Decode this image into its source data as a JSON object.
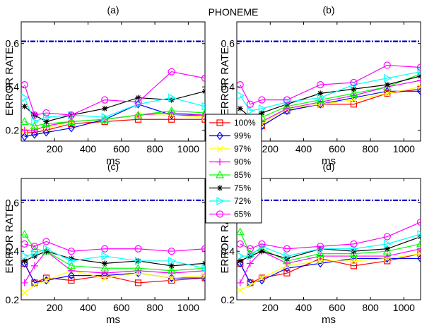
{
  "figure_title": "PHONEME",
  "chart_data": [
    {
      "type": "line",
      "title": "(a)",
      "xlabel": "ms",
      "ylabel": "ERROR RATE",
      "xlim": [
        0,
        1100
      ],
      "ylim": [
        0.15,
        0.7
      ],
      "xticks": [
        200,
        400,
        600,
        800,
        1000
      ],
      "yticks": [
        0.2,
        0.4,
        0.6
      ],
      "x": [
        20,
        80,
        150,
        300,
        500,
        700,
        900,
        1100
      ],
      "reference_line": 0.61,
      "series": [
        {
          "name": "100%",
          "values": [
            0.19,
            0.19,
            0.2,
            0.23,
            0.24,
            0.25,
            0.25,
            0.25
          ]
        },
        {
          "name": "99%",
          "values": [
            0.17,
            0.18,
            0.19,
            0.21,
            0.25,
            0.32,
            0.27,
            0.27
          ]
        },
        {
          "name": "97%",
          "values": [
            0.2,
            0.21,
            0.21,
            0.24,
            0.25,
            0.27,
            0.27,
            0.26
          ]
        },
        {
          "name": "90%",
          "values": [
            0.2,
            0.2,
            0.22,
            0.24,
            0.25,
            0.27,
            0.28,
            0.27
          ]
        },
        {
          "name": "85%",
          "values": [
            0.24,
            0.22,
            0.23,
            0.24,
            0.25,
            0.27,
            0.29,
            0.28
          ]
        },
        {
          "name": "75%",
          "values": [
            0.31,
            0.27,
            0.24,
            0.27,
            0.3,
            0.35,
            0.34,
            0.38
          ]
        },
        {
          "name": "72%",
          "values": [
            0.35,
            0.24,
            0.26,
            0.27,
            0.26,
            0.32,
            0.35,
            0.31
          ]
        },
        {
          "name": "65%",
          "values": [
            0.41,
            0.27,
            0.28,
            0.27,
            0.34,
            0.33,
            0.47,
            0.44
          ]
        }
      ]
    },
    {
      "type": "line",
      "title": "(b)",
      "xlabel": "ms",
      "ylabel": "ERROR RATE",
      "xlim": [
        0,
        1100
      ],
      "ylim": [
        0.15,
        0.7
      ],
      "xticks": [
        200,
        400,
        600,
        800,
        1000
      ],
      "yticks": [
        0.2,
        0.4,
        0.6
      ],
      "x": [
        20,
        80,
        150,
        300,
        500,
        700,
        900,
        1100
      ],
      "reference_line": 0.61,
      "series": [
        {
          "name": "100%",
          "values": [
            0.19,
            0.2,
            0.22,
            0.29,
            0.32,
            0.32,
            0.37,
            0.39
          ]
        },
        {
          "name": "99%",
          "values": [
            0.19,
            0.2,
            0.22,
            0.29,
            0.32,
            0.35,
            0.38,
            0.38
          ]
        },
        {
          "name": "97%",
          "values": [
            0.2,
            0.21,
            0.23,
            0.3,
            0.32,
            0.34,
            0.37,
            0.4
          ]
        },
        {
          "name": "90%",
          "values": [
            0.2,
            0.22,
            0.24,
            0.3,
            0.33,
            0.36,
            0.4,
            0.43
          ]
        },
        {
          "name": "85%",
          "values": [
            0.25,
            0.24,
            0.26,
            0.31,
            0.34,
            0.37,
            0.4,
            0.46
          ]
        },
        {
          "name": "75%",
          "values": [
            0.3,
            0.26,
            0.28,
            0.32,
            0.37,
            0.39,
            0.41,
            0.45
          ]
        },
        {
          "name": "72%",
          "values": [
            0.36,
            0.29,
            0.3,
            0.33,
            0.35,
            0.41,
            0.44,
            0.47
          ]
        },
        {
          "name": "65%",
          "values": [
            0.41,
            0.32,
            0.34,
            0.34,
            0.41,
            0.42,
            0.5,
            0.49
          ]
        }
      ]
    },
    {
      "type": "line",
      "title": "(c)",
      "xlabel": "ms",
      "ylabel": "ERROR RATE",
      "xlim": [
        0,
        1100
      ],
      "ylim": [
        0.2,
        0.7
      ],
      "xticks": [
        200,
        400,
        600,
        800,
        1000
      ],
      "yticks": [
        0.2,
        0.4,
        0.6
      ],
      "x": [
        20,
        80,
        150,
        300,
        500,
        700,
        900,
        1100
      ],
      "reference_line": 0.61,
      "series": [
        {
          "name": "100%",
          "values": [
            0.35,
            0.27,
            0.29,
            0.28,
            0.3,
            0.27,
            0.28,
            0.29
          ]
        },
        {
          "name": "99%",
          "values": [
            0.35,
            0.27,
            0.28,
            0.3,
            0.3,
            0.31,
            0.29,
            0.29
          ]
        },
        {
          "name": "97%",
          "values": [
            0.23,
            0.26,
            0.28,
            0.32,
            0.29,
            0.31,
            0.29,
            0.3
          ]
        },
        {
          "name": "90%",
          "values": [
            0.27,
            0.34,
            0.4,
            0.32,
            0.31,
            0.32,
            0.31,
            0.32
          ]
        },
        {
          "name": "85%",
          "values": [
            0.47,
            0.41,
            0.4,
            0.34,
            0.33,
            0.33,
            0.32,
            0.33
          ]
        },
        {
          "name": "75%",
          "values": [
            0.36,
            0.38,
            0.4,
            0.37,
            0.35,
            0.36,
            0.34,
            0.35
          ]
        },
        {
          "name": "72%",
          "values": [
            0.38,
            0.39,
            0.41,
            0.36,
            0.38,
            0.36,
            0.36,
            0.33
          ]
        },
        {
          "name": "65%",
          "values": [
            0.43,
            0.42,
            0.44,
            0.4,
            0.41,
            0.41,
            0.4,
            0.41
          ]
        }
      ]
    },
    {
      "type": "line",
      "title": "(d)",
      "xlabel": "ms",
      "ylabel": "ERROR RATE",
      "xlim": [
        0,
        1100
      ],
      "ylim": [
        0.2,
        0.7
      ],
      "xticks": [
        200,
        400,
        600,
        800,
        1000
      ],
      "yticks": [
        0.2,
        0.4,
        0.6
      ],
      "x": [
        20,
        80,
        150,
        300,
        500,
        700,
        900,
        1100
      ],
      "reference_line": 0.61,
      "series": [
        {
          "name": "100%",
          "values": [
            0.35,
            0.27,
            0.29,
            0.31,
            0.37,
            0.34,
            0.36,
            0.39
          ]
        },
        {
          "name": "99%",
          "values": [
            0.35,
            0.27,
            0.28,
            0.33,
            0.35,
            0.37,
            0.37,
            0.37
          ]
        },
        {
          "name": "97%",
          "values": [
            0.24,
            0.26,
            0.29,
            0.34,
            0.36,
            0.36,
            0.37,
            0.39
          ]
        },
        {
          "name": "90%",
          "values": [
            0.27,
            0.35,
            0.4,
            0.35,
            0.38,
            0.38,
            0.38,
            0.41
          ]
        },
        {
          "name": "85%",
          "values": [
            0.48,
            0.39,
            0.41,
            0.36,
            0.39,
            0.39,
            0.4,
            0.43
          ]
        },
        {
          "name": "75%",
          "values": [
            0.36,
            0.38,
            0.4,
            0.37,
            0.41,
            0.4,
            0.41,
            0.46
          ]
        },
        {
          "name": "72%",
          "values": [
            0.38,
            0.38,
            0.42,
            0.38,
            0.41,
            0.41,
            0.43,
            0.47
          ]
        },
        {
          "name": "65%",
          "values": [
            0.43,
            0.41,
            0.43,
            0.41,
            0.42,
            0.43,
            0.46,
            0.52
          ]
        }
      ]
    }
  ],
  "legend": {
    "placement": "center",
    "entries": [
      {
        "label": "100%",
        "color": "#ff0000",
        "marker": "square"
      },
      {
        "label": "99%",
        "color": "#0000ff",
        "marker": "diamond"
      },
      {
        "label": "97%",
        "color": "#ffff00",
        "marker": "x"
      },
      {
        "label": "90%",
        "color": "#ff00ff",
        "marker": "plus"
      },
      {
        "label": "85%",
        "color": "#00ff00",
        "marker": "triangle-up"
      },
      {
        "label": "75%",
        "color": "#000000",
        "marker": "asterisk"
      },
      {
        "label": "72%",
        "color": "#00ffff",
        "marker": "triangle-right"
      },
      {
        "label": "65%",
        "color": "#ff00ff",
        "marker": "circle"
      }
    ]
  },
  "reference_line_color": "#0000cc"
}
